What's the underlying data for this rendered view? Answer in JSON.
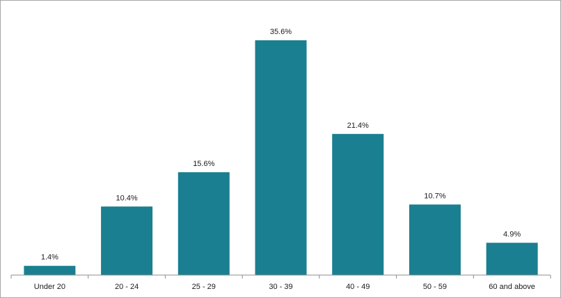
{
  "chart_data": {
    "type": "bar",
    "categories": [
      "Under 20",
      "20 - 24",
      "25 - 29",
      "30 - 39",
      "40 - 49",
      "50 - 59",
      "60 and above"
    ],
    "values": [
      1.4,
      10.4,
      15.6,
      35.6,
      21.4,
      10.7,
      4.9
    ],
    "data_labels": [
      "1.4%",
      "10.4%",
      "15.6%",
      "35.6%",
      "21.4%",
      "10.7%",
      "4.9%"
    ],
    "title": "",
    "xlabel": "",
    "ylabel": "",
    "ylim": [
      0,
      40
    ],
    "grid": false,
    "legend": "none",
    "bar_color": "#1a7f90",
    "axis_color": "#8c8c8c"
  }
}
